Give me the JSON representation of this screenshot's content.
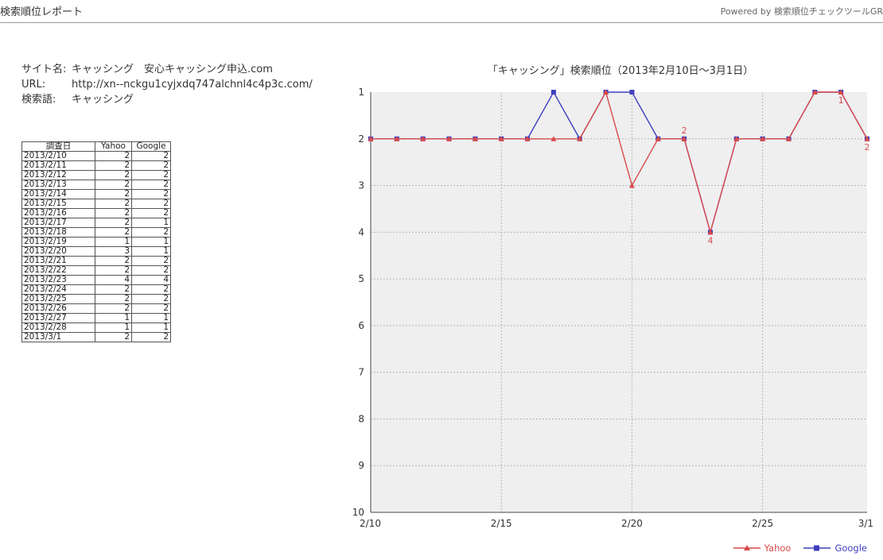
{
  "header": {
    "title": "検索順位レポート",
    "powered_by": "Powered by 検索順位チェックツールGR"
  },
  "info": {
    "site_label": "サイト名:",
    "site_value": "キャッシング　安心キャッシング申込.com",
    "url_label": "URL:",
    "url_value": "http://xn--nckgu1cyjxdq747alchnl4c4p3c.com/",
    "keyword_label": "検索語:",
    "keyword_value": "キャッシング"
  },
  "table": {
    "headers": [
      "調査日",
      "Yahoo",
      "Google"
    ],
    "rows": [
      [
        "2013/2/10",
        "2",
        "2"
      ],
      [
        "2013/2/11",
        "2",
        "2"
      ],
      [
        "2013/2/12",
        "2",
        "2"
      ],
      [
        "2013/2/13",
        "2",
        "2"
      ],
      [
        "2013/2/14",
        "2",
        "2"
      ],
      [
        "2013/2/15",
        "2",
        "2"
      ],
      [
        "2013/2/16",
        "2",
        "2"
      ],
      [
        "2013/2/17",
        "2",
        "1"
      ],
      [
        "2013/2/18",
        "2",
        "2"
      ],
      [
        "2013/2/19",
        "1",
        "1"
      ],
      [
        "2013/2/20",
        "3",
        "1"
      ],
      [
        "2013/2/21",
        "2",
        "2"
      ],
      [
        "2013/2/22",
        "2",
        "2"
      ],
      [
        "2013/2/23",
        "4",
        "4"
      ],
      [
        "2013/2/24",
        "2",
        "2"
      ],
      [
        "2013/2/25",
        "2",
        "2"
      ],
      [
        "2013/2/26",
        "2",
        "2"
      ],
      [
        "2013/2/27",
        "1",
        "1"
      ],
      [
        "2013/2/28",
        "1",
        "1"
      ],
      [
        "2013/3/1",
        "2",
        "2"
      ]
    ]
  },
  "colors": {
    "yahoo": "#d94a4a",
    "google": "#3f3fc0",
    "plot_bg": "#efefef",
    "grid": "#b5b5b5"
  },
  "chart_data": {
    "type": "line",
    "title": "「キャッシング」検索順位（2013年2月10日～3月1日）",
    "x": [
      "2/10",
      "2/11",
      "2/12",
      "2/13",
      "2/14",
      "2/15",
      "2/16",
      "2/17",
      "2/18",
      "2/19",
      "2/20",
      "2/21",
      "2/22",
      "2/23",
      "2/24",
      "2/25",
      "2/26",
      "2/27",
      "2/28",
      "3/1"
    ],
    "x_tick_labels": [
      "2/10",
      "2/15",
      "2/20",
      "2/25",
      "3/1"
    ],
    "y_tick_labels": [
      "1",
      "2",
      "3",
      "4",
      "5",
      "6",
      "7",
      "8",
      "9",
      "10"
    ],
    "ylim": [
      1,
      10
    ],
    "y_inverted": true,
    "grid": true,
    "legend_position": "bottom-right",
    "series": [
      {
        "name": "Yahoo",
        "values": [
          2,
          2,
          2,
          2,
          2,
          2,
          2,
          2,
          2,
          1,
          3,
          2,
          2,
          4,
          2,
          2,
          2,
          1,
          1,
          2
        ]
      },
      {
        "name": "Google",
        "values": [
          2,
          2,
          2,
          2,
          2,
          2,
          2,
          1,
          2,
          1,
          1,
          2,
          2,
          4,
          2,
          2,
          2,
          1,
          1,
          2
        ]
      }
    ],
    "annotations": [
      {
        "label": "2",
        "x": "2/22",
        "y": 2
      },
      {
        "label": "4",
        "x": "2/23",
        "y": 4
      },
      {
        "label": "1",
        "x": "2/28",
        "y": 1
      },
      {
        "label": "2",
        "x": "3/1",
        "y": 2
      }
    ]
  }
}
